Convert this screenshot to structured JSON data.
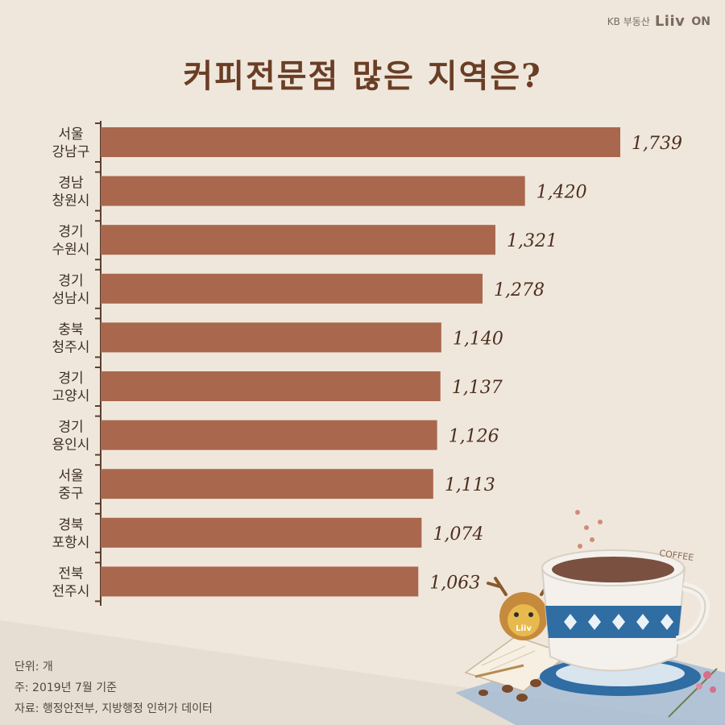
{
  "brand": {
    "kb": "KB 부동산",
    "liiv": "Liiv",
    "on": "ON"
  },
  "title": "커피전문점 많은 지역은?",
  "footnotes": {
    "unit": "단위: 개",
    "note": "주: 2019년 7월 기준",
    "source": "자료: 행정안전부, 지방행정 인허가 데이터"
  },
  "deco_text": {
    "coffee": "COFFEE",
    "liiv_mug": "Liiv"
  },
  "colors": {
    "bar": "#a9674d",
    "background": "#efe7dc",
    "title": "#6a3e25",
    "axis": "#5a4030"
  },
  "chart_data": {
    "type": "bar",
    "orientation": "horizontal",
    "title": "커피전문점 많은 지역은?",
    "unit": "개",
    "categories": [
      [
        "서울",
        "강남구"
      ],
      [
        "경남",
        "창원시"
      ],
      [
        "경기",
        "수원시"
      ],
      [
        "경기",
        "성남시"
      ],
      [
        "충북",
        "청주시"
      ],
      [
        "경기",
        "고양시"
      ],
      [
        "경기",
        "용인시"
      ],
      [
        "서울",
        "중구"
      ],
      [
        "경북",
        "포항시"
      ],
      [
        "전북",
        "전주시"
      ]
    ],
    "values": [
      1739,
      1420,
      1321,
      1278,
      1140,
      1137,
      1126,
      1113,
      1074,
      1063
    ],
    "value_labels": [
      "1,739",
      "1,420",
      "1,321",
      "1,278",
      "1,140",
      "1,137",
      "1,126",
      "1,113",
      "1,074",
      "1,063"
    ],
    "xlim": [
      0,
      1739
    ],
    "grid": false
  }
}
